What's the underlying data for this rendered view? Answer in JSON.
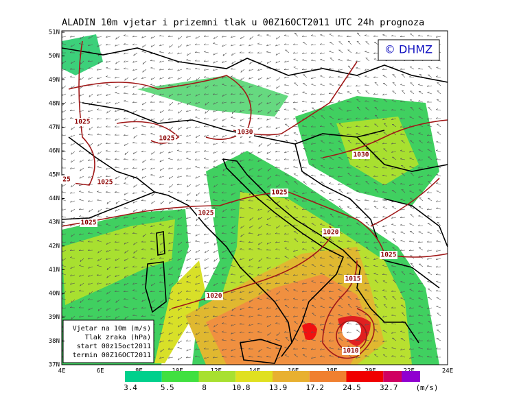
{
  "title": "ALADIN 10m vjetar i prizemni tlak u 00Z16OCT2011 UTC 24h prognoza",
  "copyright": "© DHMZ",
  "lat_labels": [
    "51N",
    "50N",
    "49N",
    "48N",
    "47N",
    "46N",
    "45N",
    "44N",
    "43N",
    "42N",
    "41N",
    "40N",
    "39N",
    "38N",
    "37N"
  ],
  "lon_labels": [
    "4E",
    "6E",
    "8E",
    "10E",
    "12E",
    "14E",
    "16E",
    "18E",
    "20E",
    "22E",
    "24E"
  ],
  "isobar_labels": [
    "1025",
    "1025",
    "1025",
    "25",
    "1030",
    "1030",
    "1025",
    "1025",
    "1025",
    "1020",
    "1025",
    "1015",
    "1020",
    "1010"
  ],
  "info_box": [
    "Vjetar na 10m (m/s)",
    "Tlak zraka (hPa)",
    "start 00z15oct2011",
    "termin 00Z16OCT2011"
  ],
  "colorbar": {
    "labels": [
      "3.4",
      "5.5",
      "8",
      "10.8",
      "13.9",
      "17.2",
      "24.5",
      "32.7"
    ],
    "unit": "(m/s)"
  }
}
